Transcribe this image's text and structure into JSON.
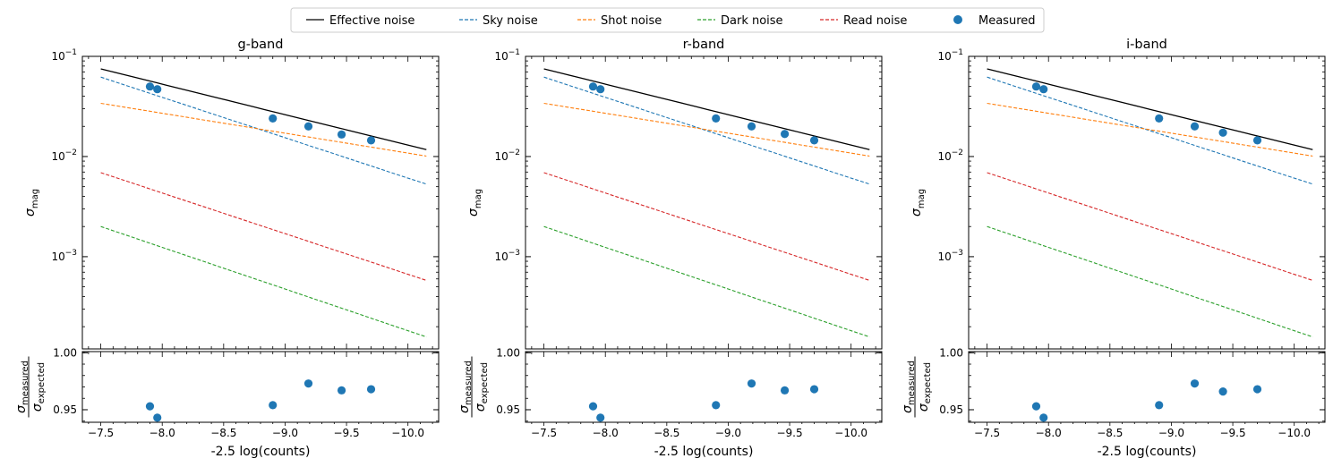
{
  "legend": [
    {
      "label": "Effective noise",
      "color": "#000000",
      "style": "solid"
    },
    {
      "label": "Sky noise",
      "color": "#1f77b4",
      "style": "dashed"
    },
    {
      "label": "Shot noise",
      "color": "#ff7f0e",
      "style": "dashed"
    },
    {
      "label": "Dark noise",
      "color": "#2ca02c",
      "style": "dashed"
    },
    {
      "label": "Read noise",
      "color": "#d62728",
      "style": "dashed"
    },
    {
      "label": "Measured",
      "color": "#1f77b4",
      "style": "marker"
    }
  ],
  "chart_data": [
    {
      "type": "line",
      "title": "g-band",
      "xlabel": "-2.5 log(counts)",
      "ylabel": "σ_mag",
      "ylabel_residual": "σ_measured / σ_expected",
      "x_inverted": true,
      "xlim": [
        -7.35,
        -10.25
      ],
      "xticks": [
        -7.5,
        -8.0,
        -8.5,
        -9.0,
        -9.5,
        -10.0
      ],
      "xtick_labels": [
        "−7.5",
        "−8.0",
        "−8.5",
        "−9.0",
        "−9.5",
        "−10.0"
      ],
      "y_scale": "log",
      "ylim": [
        0.00012,
        0.1
      ],
      "yticks": [
        0.001,
        0.01,
        0.1
      ],
      "residual_ylim": [
        0.939,
        1.001
      ],
      "residual_yticks": [
        1.0,
        0.95
      ],
      "residual_ytick_labels": [
        "1.00",
        "0.95"
      ],
      "line_x_range": [
        -7.5,
        -10.15
      ],
      "series": [
        {
          "name": "Effective noise",
          "color": "#000000",
          "style": "solid",
          "x": [
            -7.5,
            -10.15
          ],
          "y": [
            0.075,
            0.0117
          ]
        },
        {
          "name": "Sky noise",
          "color": "#1f77b4",
          "style": "dashed",
          "x": [
            -7.5,
            -10.15
          ],
          "y": [
            0.062,
            0.0053
          ]
        },
        {
          "name": "Shot noise",
          "color": "#ff7f0e",
          "style": "dashed",
          "x": [
            -7.5,
            -10.15
          ],
          "y": [
            0.034,
            0.0101
          ]
        },
        {
          "name": "Dark noise",
          "color": "#2ca02c",
          "style": "dashed",
          "x": [
            -7.5,
            -10.15
          ],
          "y": [
            0.002,
            0.000158
          ]
        },
        {
          "name": "Read noise",
          "color": "#d62728",
          "style": "dashed",
          "x": [
            -7.5,
            -10.15
          ],
          "y": [
            0.0069,
            0.00058
          ]
        }
      ],
      "measured": {
        "x": [
          -7.9,
          -7.96,
          -8.9,
          -9.19,
          -9.46,
          -9.7
        ],
        "y": [
          0.05,
          0.047,
          0.024,
          0.02,
          0.0166,
          0.0145
        ]
      },
      "residual": {
        "x": [
          -7.9,
          -7.96,
          -8.9,
          -9.19,
          -9.46,
          -9.7
        ],
        "y": [
          0.953,
          0.943,
          0.954,
          0.973,
          0.967,
          0.968
        ]
      }
    },
    {
      "type": "line",
      "title": "r-band",
      "xlabel": "-2.5 log(counts)",
      "ylabel": "σ_mag",
      "ylabel_residual": "σ_measured / σ_expected",
      "x_inverted": true,
      "xlim": [
        -7.35,
        -10.25
      ],
      "xticks": [
        -7.5,
        -8.0,
        -8.5,
        -9.0,
        -9.5,
        -10.0
      ],
      "xtick_labels": [
        "−7.5",
        "−8.0",
        "−8.5",
        "−9.0",
        "−9.5",
        "−10.0"
      ],
      "y_scale": "log",
      "ylim": [
        0.00012,
        0.1
      ],
      "yticks": [
        0.001,
        0.01,
        0.1
      ],
      "residual_ylim": [
        0.939,
        1.001
      ],
      "residual_yticks": [
        1.0,
        0.95
      ],
      "residual_ytick_labels": [
        "1.00",
        "0.95"
      ],
      "line_x_range": [
        -7.5,
        -10.15
      ],
      "series": [
        {
          "name": "Effective noise",
          "color": "#000000",
          "style": "solid",
          "x": [
            -7.5,
            -10.15
          ],
          "y": [
            0.075,
            0.0117
          ]
        },
        {
          "name": "Sky noise",
          "color": "#1f77b4",
          "style": "dashed",
          "x": [
            -7.5,
            -10.15
          ],
          "y": [
            0.062,
            0.0053
          ]
        },
        {
          "name": "Shot noise",
          "color": "#ff7f0e",
          "style": "dashed",
          "x": [
            -7.5,
            -10.15
          ],
          "y": [
            0.034,
            0.0101
          ]
        },
        {
          "name": "Dark noise",
          "color": "#2ca02c",
          "style": "dashed",
          "x": [
            -7.5,
            -10.15
          ],
          "y": [
            0.002,
            0.000158
          ]
        },
        {
          "name": "Read noise",
          "color": "#d62728",
          "style": "dashed",
          "x": [
            -7.5,
            -10.15
          ],
          "y": [
            0.0069,
            0.00058
          ]
        }
      ],
      "measured": {
        "x": [
          -7.9,
          -7.96,
          -8.9,
          -9.19,
          -9.46,
          -9.7
        ],
        "y": [
          0.05,
          0.047,
          0.024,
          0.02,
          0.0168,
          0.0145
        ]
      },
      "residual": {
        "x": [
          -7.9,
          -7.96,
          -8.9,
          -9.19,
          -9.46,
          -9.7
        ],
        "y": [
          0.953,
          0.943,
          0.954,
          0.973,
          0.967,
          0.968
        ]
      }
    },
    {
      "type": "line",
      "title": "i-band",
      "xlabel": "-2.5 log(counts)",
      "ylabel": "σ_mag",
      "ylabel_residual": "σ_measured / σ_expected",
      "x_inverted": true,
      "xlim": [
        -7.35,
        -10.25
      ],
      "xticks": [
        -7.5,
        -8.0,
        -8.5,
        -9.0,
        -9.5,
        -10.0
      ],
      "xtick_labels": [
        "−7.5",
        "−8.0",
        "−8.5",
        "−9.0",
        "−9.5",
        "−10.0"
      ],
      "y_scale": "log",
      "ylim": [
        0.00012,
        0.1
      ],
      "yticks": [
        0.001,
        0.01,
        0.1
      ],
      "residual_ylim": [
        0.939,
        1.001
      ],
      "residual_yticks": [
        1.0,
        0.95
      ],
      "residual_ytick_labels": [
        "1.00",
        "0.95"
      ],
      "line_x_range": [
        -7.5,
        -10.15
      ],
      "series": [
        {
          "name": "Effective noise",
          "color": "#000000",
          "style": "solid",
          "x": [
            -7.5,
            -10.15
          ],
          "y": [
            0.075,
            0.0117
          ]
        },
        {
          "name": "Sky noise",
          "color": "#1f77b4",
          "style": "dashed",
          "x": [
            -7.5,
            -10.15
          ],
          "y": [
            0.062,
            0.0053
          ]
        },
        {
          "name": "Shot noise",
          "color": "#ff7f0e",
          "style": "dashed",
          "x": [
            -7.5,
            -10.15
          ],
          "y": [
            0.034,
            0.0101
          ]
        },
        {
          "name": "Dark noise",
          "color": "#2ca02c",
          "style": "dashed",
          "x": [
            -7.5,
            -10.15
          ],
          "y": [
            0.002,
            0.000158
          ]
        },
        {
          "name": "Read noise",
          "color": "#d62728",
          "style": "dashed",
          "x": [
            -7.5,
            -10.15
          ],
          "y": [
            0.0069,
            0.00058
          ]
        }
      ],
      "measured": {
        "x": [
          -7.9,
          -7.96,
          -8.9,
          -9.19,
          -9.42,
          -9.7
        ],
        "y": [
          0.05,
          0.047,
          0.024,
          0.02,
          0.0173,
          0.0145
        ]
      },
      "residual": {
        "x": [
          -7.9,
          -7.96,
          -8.9,
          -9.19,
          -9.42,
          -9.7
        ],
        "y": [
          0.953,
          0.943,
          0.954,
          0.973,
          0.966,
          0.968
        ]
      }
    }
  ]
}
